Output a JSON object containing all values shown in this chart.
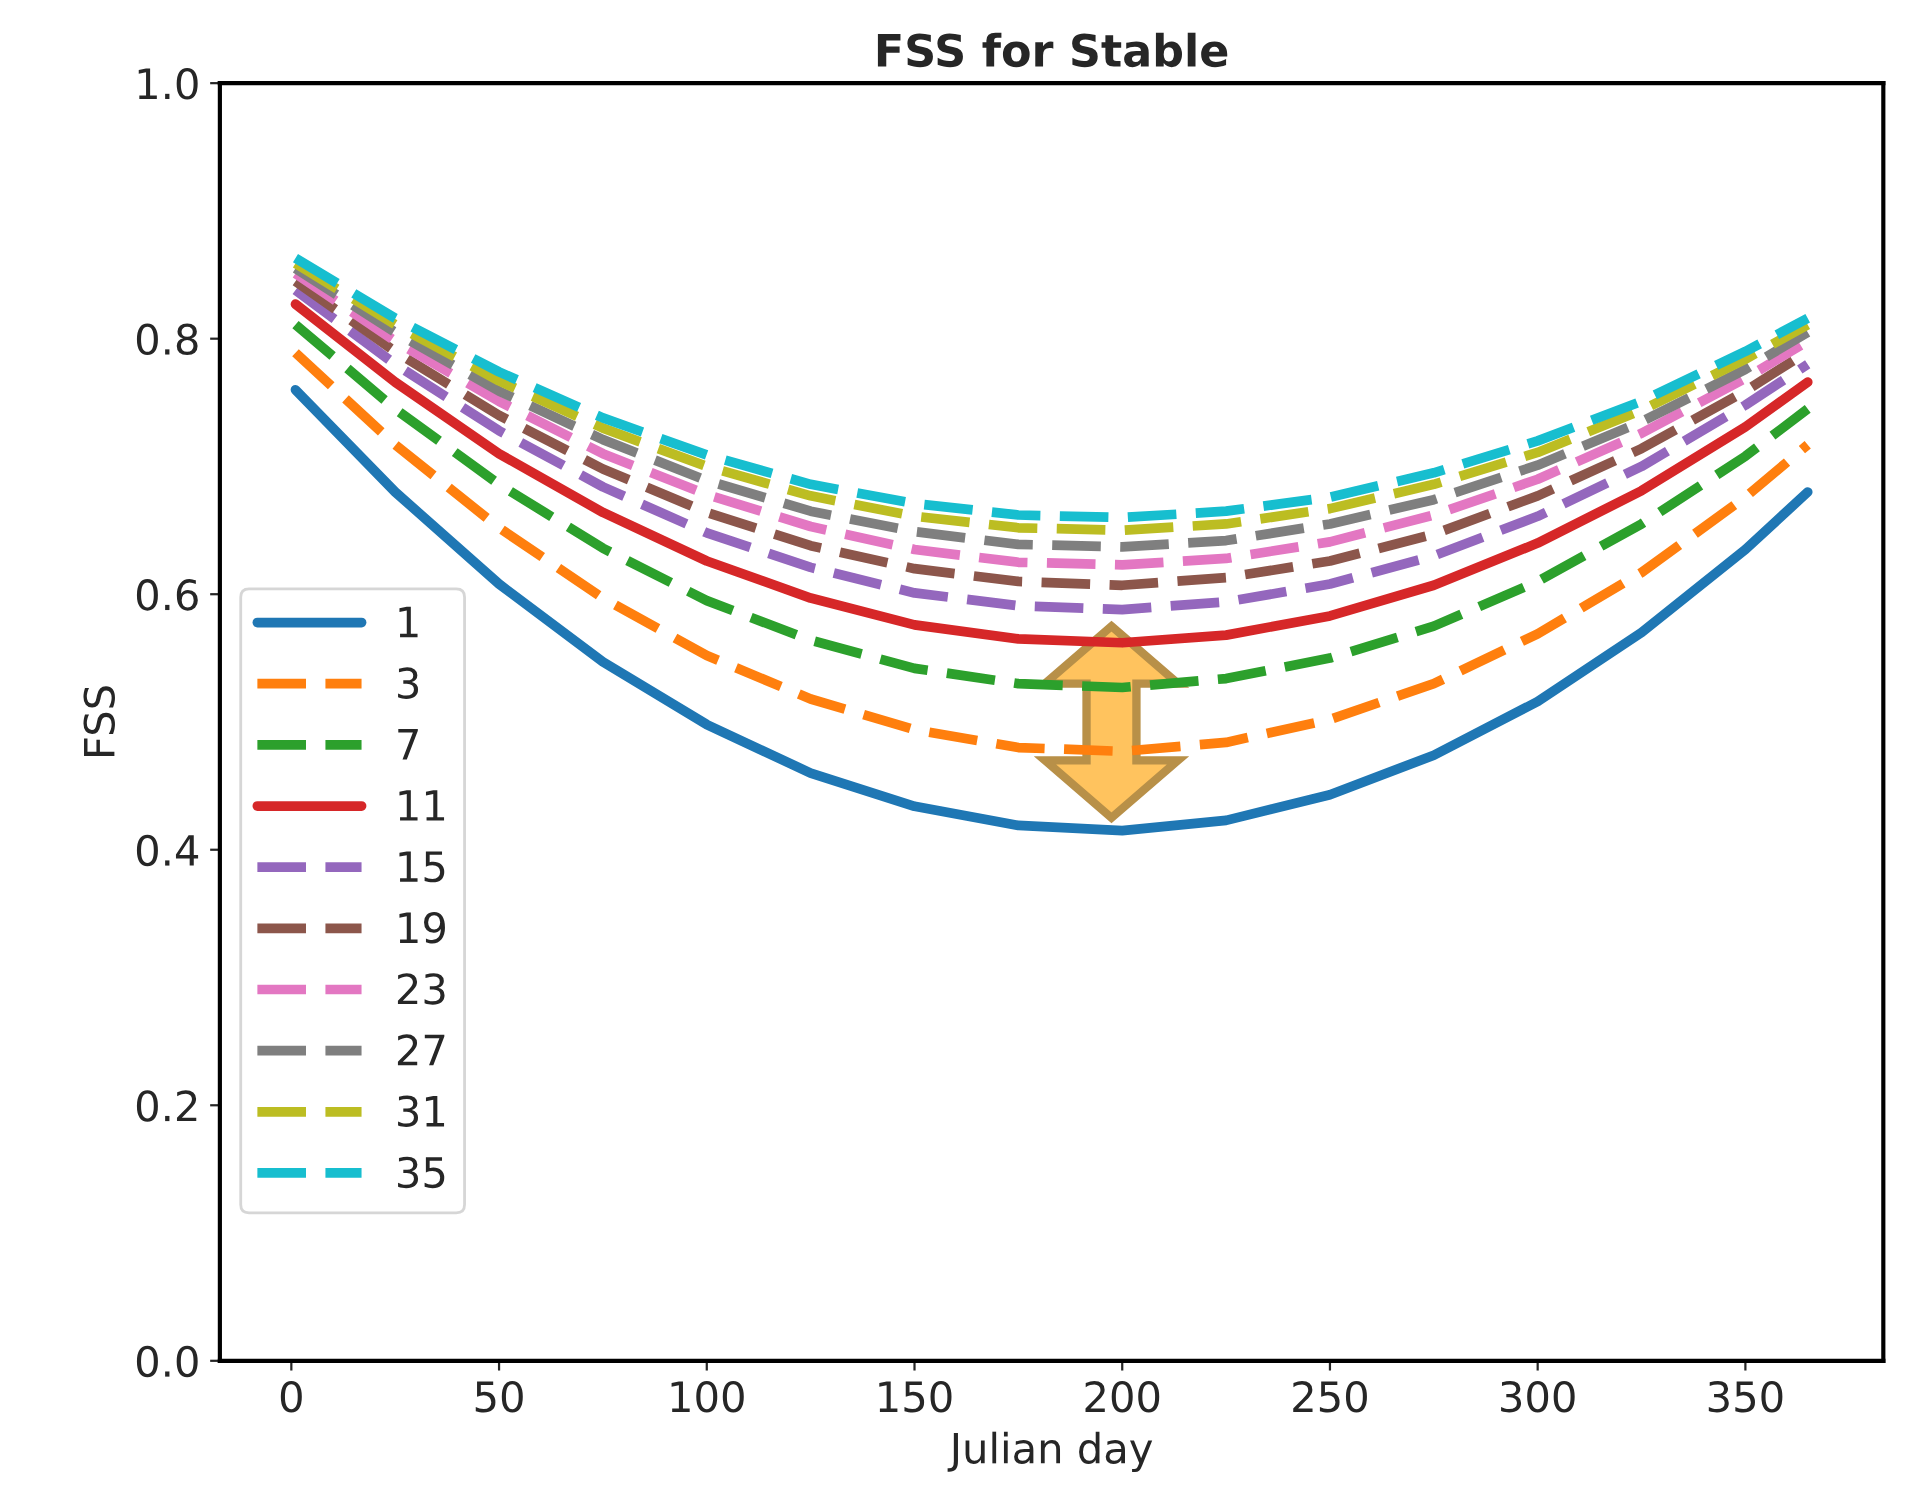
{
  "chart_data": {
    "type": "line",
    "title": "FSS for Stable",
    "xlabel": "Julian day",
    "ylabel": "FSS",
    "x": [
      1,
      25,
      50,
      75,
      100,
      125,
      150,
      175,
      200,
      225,
      250,
      275,
      300,
      325,
      350,
      365
    ],
    "xlim": [
      -17.2,
      383.2
    ],
    "xticks": [
      0,
      50,
      100,
      150,
      200,
      250,
      300,
      350
    ],
    "ylim": [
      0.0,
      1.0
    ],
    "yticks": [
      {
        "value": 0.0,
        "label": "0.0"
      },
      {
        "value": 0.2,
        "label": "0.2"
      },
      {
        "value": 0.4,
        "label": "0.4"
      },
      {
        "value": 0.6,
        "label": "0.6"
      },
      {
        "value": 0.8,
        "label": "0.8"
      },
      {
        "value": 1.0,
        "label": "1.0"
      }
    ],
    "grid": false,
    "legend": "left",
    "marker": "none",
    "series": [
      {
        "name": "1",
        "color": "#1f77b4",
        "line_style": "solid",
        "values": [
          0.76,
          0.68,
          0.608,
          0.547,
          0.498,
          0.46,
          0.434,
          0.419,
          0.415,
          0.423,
          0.443,
          0.474,
          0.516,
          0.57,
          0.635,
          0.68
        ]
      },
      {
        "name": "3",
        "color": "#ff7f0e",
        "line_style": "dashed",
        "values": [
          0.789,
          0.717,
          0.652,
          0.597,
          0.552,
          0.518,
          0.494,
          0.48,
          0.477,
          0.484,
          0.502,
          0.53,
          0.569,
          0.617,
          0.676,
          0.717
        ]
      },
      {
        "name": "7",
        "color": "#2ca02c",
        "line_style": "dashed",
        "values": [
          0.811,
          0.745,
          0.686,
          0.636,
          0.595,
          0.564,
          0.542,
          0.53,
          0.527,
          0.534,
          0.55,
          0.575,
          0.61,
          0.655,
          0.708,
          0.745
        ]
      },
      {
        "name": "11",
        "color": "#d62728",
        "line_style": "solid",
        "values": [
          0.827,
          0.766,
          0.71,
          0.664,
          0.626,
          0.597,
          0.576,
          0.565,
          0.562,
          0.568,
          0.583,
          0.607,
          0.64,
          0.681,
          0.731,
          0.766
        ]
      },
      {
        "name": "15",
        "color": "#9467bd",
        "line_style": "dashed",
        "values": [
          0.838,
          0.78,
          0.728,
          0.684,
          0.648,
          0.621,
          0.601,
          0.591,
          0.588,
          0.594,
          0.608,
          0.63,
          0.661,
          0.7,
          0.748,
          0.78
        ]
      },
      {
        "name": "19",
        "color": "#8c564b",
        "line_style": "dashed",
        "values": [
          0.845,
          0.79,
          0.74,
          0.698,
          0.664,
          0.638,
          0.62,
          0.61,
          0.607,
          0.613,
          0.626,
          0.647,
          0.677,
          0.714,
          0.759,
          0.79
        ]
      },
      {
        "name": "23",
        "color": "#e377c2",
        "line_style": "dashed",
        "values": [
          0.851,
          0.798,
          0.751,
          0.71,
          0.678,
          0.653,
          0.635,
          0.625,
          0.623,
          0.628,
          0.641,
          0.662,
          0.69,
          0.726,
          0.769,
          0.798
        ]
      },
      {
        "name": "27",
        "color": "#7f7f7f",
        "line_style": "dashed",
        "values": [
          0.855,
          0.805,
          0.759,
          0.721,
          0.689,
          0.665,
          0.649,
          0.639,
          0.637,
          0.642,
          0.655,
          0.674,
          0.701,
          0.735,
          0.776,
          0.805
        ]
      },
      {
        "name": "31",
        "color": "#bcbd22",
        "line_style": "dashed",
        "values": [
          0.859,
          0.811,
          0.767,
          0.73,
          0.7,
          0.677,
          0.661,
          0.652,
          0.65,
          0.655,
          0.667,
          0.686,
          0.711,
          0.744,
          0.784,
          0.811
        ]
      },
      {
        "name": "35",
        "color": "#17becf",
        "line_style": "dashed",
        "values": [
          0.863,
          0.816,
          0.774,
          0.738,
          0.709,
          0.686,
          0.671,
          0.662,
          0.66,
          0.665,
          0.676,
          0.695,
          0.72,
          0.751,
          0.79,
          0.816
        ]
      }
    ]
  }
}
